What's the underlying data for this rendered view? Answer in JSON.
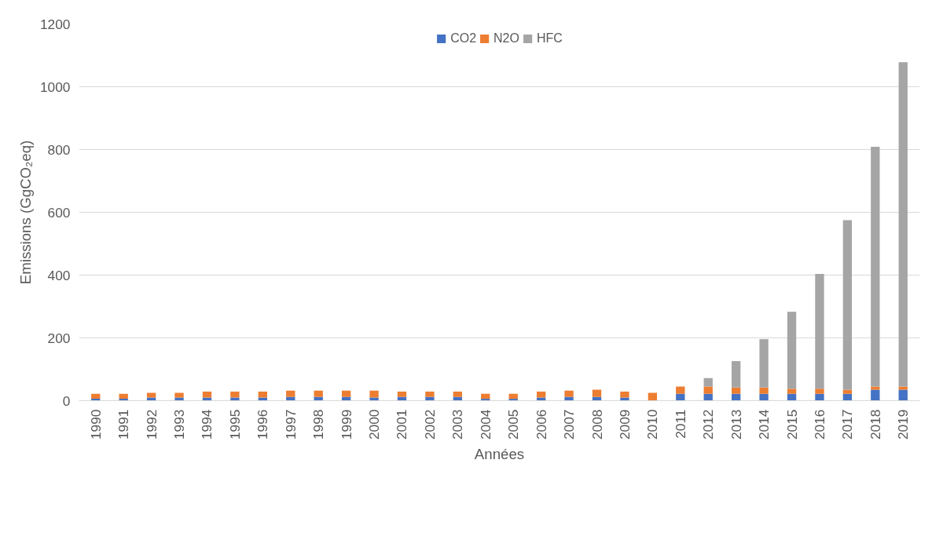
{
  "chart_data": {
    "type": "bar",
    "stacked": true,
    "xlabel": "Années",
    "ylabel": "Emissions (GgCO₂eq)",
    "categories": [
      "1990",
      "1991",
      "1992",
      "1993",
      "1994",
      "1995",
      "1996",
      "1997",
      "1998",
      "1999",
      "2000",
      "2001",
      "2002",
      "2003",
      "2004",
      "2005",
      "2006",
      "2007",
      "2008",
      "2009",
      "2010",
      "2011",
      "2012",
      "2013",
      "2014",
      "2015",
      "2016",
      "2017",
      "2018",
      "2019"
    ],
    "series": [
      {
        "name": "CO2",
        "color": "#4472c4",
        "values": [
          6,
          6,
          10,
          10,
          10,
          10,
          10,
          12,
          12,
          12,
          10,
          12,
          12,
          12,
          6,
          6,
          10,
          12,
          12,
          10,
          0,
          22,
          22,
          22,
          22,
          22,
          22,
          22,
          35,
          35
        ]
      },
      {
        "name": "N2O",
        "color": "#ed7d31",
        "values": [
          16,
          16,
          15,
          15,
          19,
          19,
          19,
          20,
          20,
          20,
          22,
          17,
          17,
          17,
          16,
          16,
          19,
          20,
          23,
          19,
          25,
          23,
          23,
          20,
          20,
          16,
          16,
          13,
          10,
          10
        ]
      },
      {
        "name": "HFC",
        "color": "#a5a5a5",
        "values": [
          0,
          0,
          0,
          0,
          0,
          0,
          0,
          0,
          0,
          0,
          0,
          0,
          0,
          0,
          0,
          0,
          0,
          0,
          0,
          0,
          0,
          0,
          27,
          84,
          154,
          245,
          366,
          540,
          764,
          1033
        ]
      }
    ],
    "ylim": [
      0,
      1200
    ],
    "yticks": [
      0,
      200,
      400,
      600,
      800,
      1000,
      1200
    ],
    "grid": "y",
    "legend": "top"
  }
}
